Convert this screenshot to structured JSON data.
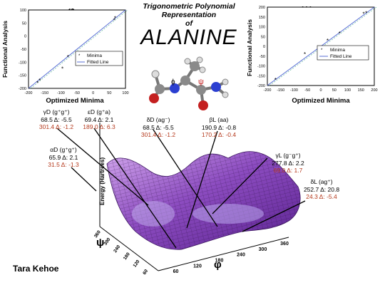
{
  "title": {
    "line1": "Trigonometric Polynomial",
    "line2": "Representation",
    "line3": "of",
    "molecule": "ALANINE"
  },
  "author": "Tara Kehoe",
  "colors": {
    "surface": "#8a4cbf",
    "red_text": "#b5391c",
    "fit_line": "#5a6fd6"
  },
  "left_plot": {
    "symbol": "φ",
    "ylabel": "Functional Analysis",
    "xlabel": "Optimized Minima",
    "xticks": [
      "-200",
      "-150",
      "-100",
      "-50",
      "0",
      "50",
      "100"
    ],
    "yticks": [
      "100",
      "50",
      "0",
      "-50",
      "-100",
      "-150",
      "-200"
    ],
    "legend": [
      "Minima",
      "Fitted Line"
    ]
  },
  "right_plot": {
    "symbol": "Ψ",
    "ylabel": "Functional Analysis",
    "xlabel": "Optimized Minima",
    "xticks": [
      "-200",
      "-150",
      "-100",
      "-50",
      "0",
      "50",
      "100",
      "150",
      "200"
    ],
    "yticks": [
      "200",
      "150",
      "100",
      "50",
      "0",
      "-50",
      "-100",
      "-150",
      "-200"
    ],
    "legend": [
      "Minima",
      "Fitted Line"
    ]
  },
  "chart_data": [
    {
      "type": "scatter",
      "title": "φ",
      "xlabel": "Optimized Minima",
      "ylabel": "Functional Analysis",
      "xlim": [
        -200,
        100
      ],
      "ylim": [
        -200,
        100
      ],
      "series": [
        {
          "name": "Minima",
          "x": [
            -172,
            -165,
            -95,
            -78,
            65,
            68
          ],
          "y": [
            -180,
            -170,
            -125,
            -80,
            60,
            68
          ]
        },
        {
          "name": "Fitted Line",
          "x": [
            -200,
            100
          ],
          "y": [
            -200,
            100
          ]
        }
      ]
    },
    {
      "type": "scatter",
      "title": "Ψ",
      "xlabel": "Optimized Minima",
      "ylabel": "Functional Analysis",
      "xlim": [
        -200,
        200
      ],
      "ylim": [
        -200,
        200
      ],
      "series": [
        {
          "name": "Minima",
          "x": [
            -170,
            -60,
            25,
            70,
            160,
            170
          ],
          "y": [
            -170,
            -40,
            30,
            65,
            165,
            170
          ]
        },
        {
          "name": "Fitted Line",
          "x": [
            -200,
            200
          ],
          "y": [
            -200,
            200
          ]
        }
      ]
    }
  ],
  "surface_plot": {
    "zlabel": "Energy (Hartrees)",
    "xaxis_symbol": "φ",
    "yaxis_symbol": "ψ",
    "xticks": [
      "60",
      "120",
      "180",
      "240",
      "300",
      "360"
    ],
    "yticks": [
      "360",
      "300",
      "240",
      "180",
      "120",
      "60"
    ]
  },
  "molecule_labels": {
    "phi": "ϕ",
    "psi": "ψ"
  },
  "annotations": [
    {
      "name": "gamma-d",
      "label": "γD (g⁺g⁺)",
      "black": "68.5 Δ: -5.5",
      "red": "301.4 Δ: -1.2"
    },
    {
      "name": "epsilon-d",
      "label": "εD (g⁺a)",
      "black": "69.4 Δ: 2.1",
      "red": "189.0 Δ: 6.3"
    },
    {
      "name": "delta-d",
      "label": "δD (ag⁻)",
      "black": "68.5 Δ: -5.5",
      "red": "301.4 Δ: -1.2"
    },
    {
      "name": "beta-l",
      "label": "βL (aa)",
      "black": "190.9 Δ: -0.8",
      "red": "170.2 Δ: -0.4"
    },
    {
      "name": "alpha-d",
      "label": "αD (g⁺g⁺)",
      "black": "65.9 Δ: 2.1",
      "red": "31.5 Δ: -1.3"
    },
    {
      "name": "gamma-l",
      "label": "γL (g⁻g⁺)",
      "black": "277.8 Δ: 2.2",
      "red": "69.0 Δ: 1.7"
    },
    {
      "name": "delta-l",
      "label": "δL (ag⁺)",
      "black": "252.7 Δ: 20.8",
      "red": "24.3 Δ: -5.4"
    }
  ]
}
